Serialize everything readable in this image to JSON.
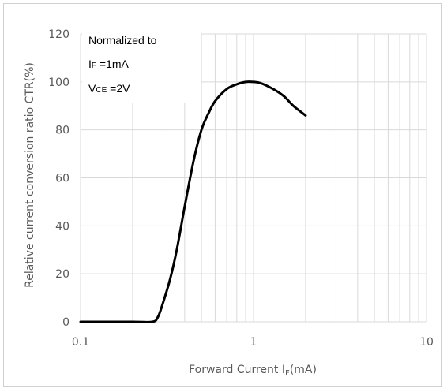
{
  "chart_data": {
    "type": "line",
    "x_scale": "log",
    "xlim": [
      0.1,
      10
    ],
    "ylim": [
      0,
      120
    ],
    "grid": true,
    "x_ticks": [
      "0.1",
      "1",
      "10"
    ],
    "y_ticks": [
      "0",
      "20",
      "40",
      "60",
      "80",
      "100",
      "120"
    ],
    "ylabel": "Relative current conversion ratio CTR(%)",
    "xlabel": {
      "main": "Forward Current I",
      "sub": "F",
      "tail": "(mA)"
    },
    "annotation": {
      "line1": "Normalized to",
      "line2_main": "I",
      "line2_sub": "F",
      "line2_tail": " =1mA",
      "line3_main": "V",
      "line3_sub": "CE",
      "line3_tail": " =2V"
    },
    "series": [
      {
        "x": [
          0.1,
          0.2,
          0.26,
          0.28,
          0.3,
          0.33,
          0.36,
          0.4,
          0.45,
          0.5,
          0.55,
          0.6,
          0.7,
          0.8,
          0.9,
          1.0,
          1.1,
          1.3,
          1.5,
          1.7,
          2.0
        ],
        "y": [
          0,
          0,
          0,
          2,
          8,
          18,
          30,
          48,
          67,
          80,
          87,
          92,
          97,
          99,
          100,
          100,
          99.5,
          97,
          94,
          90,
          86
        ]
      }
    ],
    "line_color": "#000000",
    "grid_color": "#d9d9d9"
  }
}
